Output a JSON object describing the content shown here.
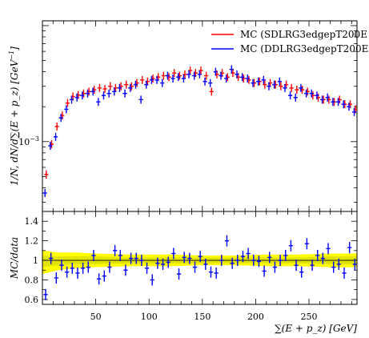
{
  "colors": {
    "band": "#ffff00",
    "band_inner": "#e3e300"
  },
  "chart_data": [
    {
      "type": "scatter",
      "title": "",
      "xlabel": "",
      "ylabel": "1/N, dN/d∑(E + p_z) [GeV^-1]",
      "ylim": [
        0.00025,
        0.011
      ],
      "yscale": "log",
      "xlim": [
        0,
        295
      ],
      "x_ticks": [],
      "y_ticks": [
        {
          "value": 0.001,
          "label": "10^-3"
        }
      ],
      "legend_position": "top-right",
      "series": [
        {
          "name": "MC (SDLRG3edgepT200E",
          "color": "#ff0000",
          "x": [
            3,
            8,
            13,
            18,
            23,
            28,
            33,
            38,
            43,
            48,
            53,
            58,
            63,
            68,
            73,
            78,
            83,
            88,
            93,
            98,
            103,
            108,
            113,
            118,
            123,
            128,
            133,
            138,
            143,
            148,
            153,
            158,
            163,
            168,
            173,
            178,
            183,
            188,
            193,
            198,
            203,
            208,
            213,
            218,
            223,
            228,
            233,
            238,
            243,
            248,
            253,
            258,
            263,
            268,
            273,
            278,
            283,
            288,
            293
          ],
          "y": [
            0.00052,
            0.00095,
            0.00135,
            0.00168,
            0.00215,
            0.00245,
            0.00252,
            0.0026,
            0.0027,
            0.0028,
            0.0029,
            0.00285,
            0.003,
            0.0029,
            0.003,
            0.0031,
            0.003,
            0.0032,
            0.0034,
            0.0033,
            0.0035,
            0.0036,
            0.0037,
            0.0036,
            0.0039,
            0.0037,
            0.0038,
            0.0041,
            0.0039,
            0.0041,
            0.0037,
            0.0027,
            0.0038,
            0.0039,
            0.0036,
            0.0039,
            0.0036,
            0.0035,
            0.0034,
            0.0032,
            0.0033,
            0.0031,
            0.0032,
            0.0031,
            0.003,
            0.0031,
            0.0029,
            0.0028,
            0.0028,
            0.0027,
            0.0025,
            0.0024,
            0.0023,
            0.0023,
            0.0022,
            0.0023,
            0.0021,
            0.0021,
            0.0019
          ]
        },
        {
          "name": "MC (DDLRG3edgepT200E",
          "color": "#0000ff",
          "x": [
            3,
            8,
            13,
            18,
            23,
            28,
            33,
            38,
            43,
            48,
            53,
            58,
            63,
            68,
            73,
            78,
            83,
            88,
            93,
            98,
            103,
            108,
            113,
            118,
            123,
            128,
            133,
            138,
            143,
            148,
            153,
            158,
            163,
            168,
            173,
            178,
            183,
            188,
            193,
            198,
            203,
            208,
            213,
            218,
            223,
            228,
            233,
            238,
            243,
            248,
            253,
            258,
            263,
            268,
            273,
            278,
            283,
            288,
            293
          ],
          "y": [
            0.00036,
            0.00092,
            0.0011,
            0.0016,
            0.0019,
            0.0023,
            0.0024,
            0.0025,
            0.0026,
            0.0027,
            0.0022,
            0.0025,
            0.0026,
            0.0027,
            0.0029,
            0.0026,
            0.0029,
            0.0031,
            0.0023,
            0.0031,
            0.0034,
            0.0034,
            0.0032,
            0.0037,
            0.0035,
            0.0036,
            0.0035,
            0.0038,
            0.0037,
            0.0038,
            0.0033,
            0.0032,
            0.004,
            0.0037,
            0.0035,
            0.0042,
            0.0038,
            0.0036,
            0.0035,
            0.0032,
            0.0033,
            0.0034,
            0.003,
            0.0031,
            0.0033,
            0.0029,
            0.0025,
            0.0024,
            0.0029,
            0.0026,
            0.0026,
            0.0025,
            0.0023,
            0.0024,
            0.0022,
            0.0022,
            0.0021,
            0.002,
            0.0018
          ]
        }
      ]
    },
    {
      "type": "scatter",
      "title": "",
      "xlabel": "∑(E + p_z) [GeV]",
      "ylabel": "MC/data",
      "xlim": [
        0,
        295
      ],
      "ylim": [
        0.55,
        1.5
      ],
      "x_ticks": [
        50,
        100,
        150,
        200,
        250
      ],
      "y_ticks": [
        0.6,
        0.8,
        1,
        1.2,
        1.4
      ],
      "band": {
        "outer": {
          "x": [
            0,
            15,
            30,
            50,
            80,
            120,
            150,
            180,
            210,
            240,
            270,
            295
          ],
          "lo": [
            0.86,
            0.9,
            0.92,
            0.93,
            0.94,
            0.94,
            0.95,
            0.95,
            0.94,
            0.94,
            0.93,
            0.93
          ],
          "hi": [
            1.1,
            1.08,
            1.08,
            1.07,
            1.06,
            1.06,
            1.05,
            1.05,
            1.06,
            1.06,
            1.07,
            1.07
          ]
        },
        "inner": {
          "x": [
            0,
            15,
            30,
            50,
            80,
            120,
            150,
            180,
            210,
            240,
            270,
            295
          ],
          "lo": [
            0.93,
            0.95,
            0.96,
            0.96,
            0.97,
            0.97,
            0.97,
            0.97,
            0.97,
            0.97,
            0.96,
            0.96
          ],
          "hi": [
            1.05,
            1.04,
            1.04,
            1.04,
            1.03,
            1.03,
            1.03,
            1.03,
            1.03,
            1.03,
            1.04,
            1.04
          ]
        }
      },
      "series": [
        {
          "name": "",
          "color": "#0000ff",
          "x": [
            3,
            8,
            13,
            18,
            23,
            28,
            33,
            38,
            43,
            48,
            53,
            58,
            63,
            68,
            73,
            78,
            83,
            88,
            93,
            98,
            103,
            108,
            113,
            118,
            123,
            128,
            133,
            138,
            143,
            148,
            153,
            158,
            163,
            168,
            173,
            178,
            183,
            188,
            193,
            198,
            203,
            208,
            213,
            218,
            223,
            228,
            233,
            238,
            243,
            248,
            253,
            258,
            263,
            268,
            273,
            278,
            283,
            288,
            293
          ],
          "y": [
            0.65,
            1.02,
            0.82,
            0.95,
            0.88,
            0.92,
            0.87,
            0.92,
            0.93,
            1.05,
            0.81,
            0.84,
            0.93,
            1.1,
            1.05,
            0.9,
            1.02,
            1.02,
            1.0,
            0.92,
            0.8,
            0.97,
            0.96,
            0.98,
            1.07,
            0.86,
            1.03,
            1.02,
            0.93,
            1.04,
            0.96,
            0.88,
            0.87,
            1.0,
            1.2,
            0.97,
            1.0,
            1.04,
            1.07,
            1.0,
            0.99,
            0.89,
            1.03,
            0.93,
            1.0,
            1.05,
            1.15,
            0.95,
            0.88,
            1.17,
            0.95,
            1.05,
            1.02,
            1.12,
            0.93,
            0.96,
            0.87,
            1.13,
            0.96
          ]
        }
      ]
    }
  ]
}
